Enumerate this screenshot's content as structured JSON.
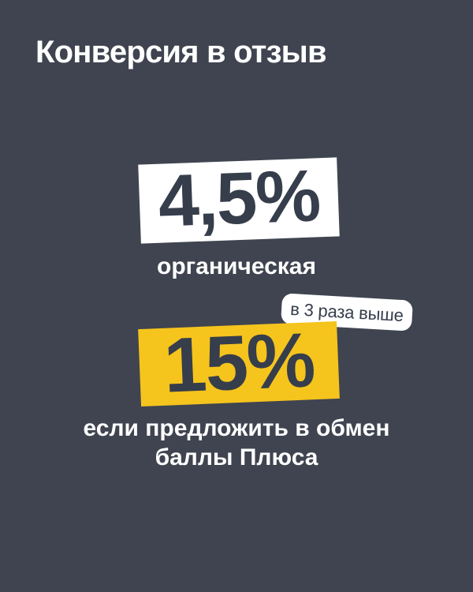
{
  "slide": {
    "title": "Конверсия в отзыв",
    "stat_organic": {
      "value": "4,5%",
      "caption": "органическая"
    },
    "badge": {
      "label": "в 3 раза выше"
    },
    "stat_plus": {
      "value": "15%",
      "caption_line1": "если предложить в обмен",
      "caption_line2": "баллы Плюса"
    },
    "colors": {
      "background": "#3f4450",
      "dark_text": "#363d4b",
      "accent_yellow": "#f5c41d",
      "white": "#ffffff"
    }
  }
}
